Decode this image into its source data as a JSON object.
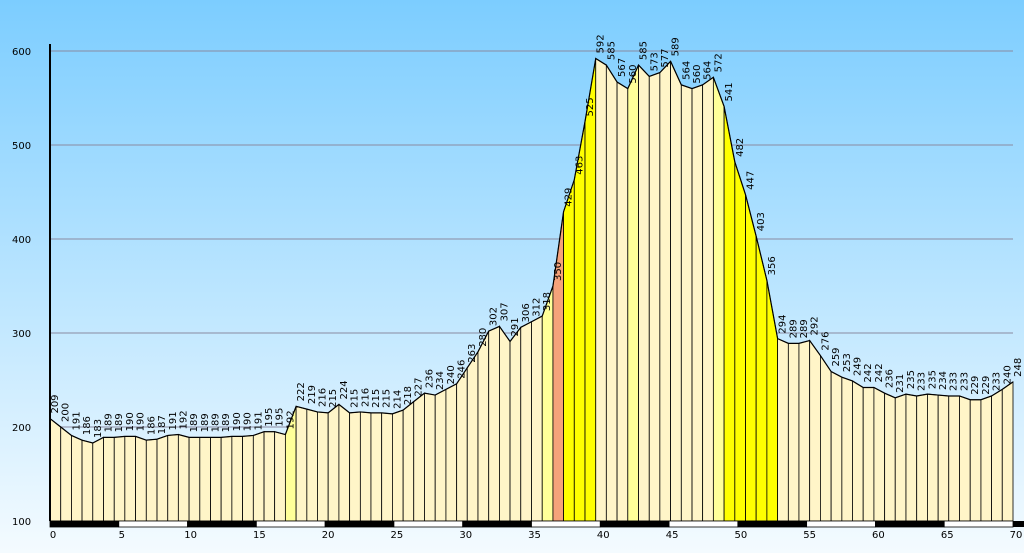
{
  "chart_data": {
    "type": "area",
    "x": [
      0,
      0.78,
      1.56,
      2.33,
      3.11,
      3.89,
      4.67,
      5.44,
      6.22,
      7,
      7.78,
      8.56,
      9.33,
      10.11,
      10.89,
      11.67,
      12.44,
      13.22,
      14,
      14.78,
      15.56,
      16.33,
      17.11,
      17.89,
      18.67,
      19.44,
      20.22,
      21,
      21.78,
      22.56,
      23.33,
      24.11,
      24.89,
      25.67,
      26.44,
      27.22,
      28,
      28.78,
      29.56,
      30.33,
      31.11,
      31.89,
      32.67,
      33.44,
      34.22,
      35,
      35.78,
      36.56,
      37.33,
      38.11,
      38.89,
      39.67,
      40.44,
      41.22,
      42,
      42.78,
      43.56,
      44.33,
      45.11,
      45.89,
      46.67,
      47.44,
      48.22,
      49,
      49.78,
      50.56,
      51.33,
      52.11,
      52.89,
      53.67,
      54.44,
      55.22,
      56,
      56.78,
      57.56,
      58.33,
      59.11,
      59.89,
      60.67,
      61.44,
      62.22,
      63,
      63.78,
      64.56,
      65.33,
      66.11,
      66.89,
      67.67,
      68.44,
      69.22,
      70
    ],
    "values": [
      209,
      200,
      191,
      186,
      183,
      189,
      189,
      190,
      190,
      186,
      187,
      191,
      192,
      189,
      189,
      189,
      189,
      190,
      190,
      191,
      195,
      195,
      192,
      222,
      219,
      216,
      215,
      224,
      215,
      216,
      215,
      215,
      214,
      218,
      227,
      236,
      234,
      240,
      246,
      263,
      280,
      302,
      307,
      291,
      306,
      312,
      318,
      350,
      429,
      463,
      525,
      592,
      585,
      567,
      560,
      585,
      573,
      577,
      589,
      564,
      560,
      564,
      572,
      541,
      482,
      447,
      403,
      356,
      294,
      289,
      289,
      292,
      276,
      259,
      253,
      249,
      242,
      242,
      236,
      231,
      235,
      233,
      235,
      234,
      233,
      233,
      229,
      229,
      233,
      240,
      248
    ],
    "segment_colors": [
      "#fff5c8",
      "#fff5c8",
      "#fff5c8",
      "#fff5c8",
      "#fff5c8",
      "#fff5c8",
      "#fff5c8",
      "#fff5c8",
      "#fff5c8",
      "#fff5c8",
      "#fff5c8",
      "#fff5c8",
      "#fff5c8",
      "#fff5c8",
      "#fff5c8",
      "#fff5c8",
      "#fff5c8",
      "#fff5c8",
      "#fff5c8",
      "#fff5c8",
      "#fff5c8",
      "#fff5c8",
      "#ffff99",
      "#fff5c8",
      "#fff5c8",
      "#fff5c8",
      "#fff5c8",
      "#fff5c8",
      "#fff5c8",
      "#fff5c8",
      "#fff5c8",
      "#fff5c8",
      "#fff5c8",
      "#fff5c8",
      "#fff5c8",
      "#fff5c8",
      "#fff5c8",
      "#fff5c8",
      "#fff5c8",
      "#fff5c8",
      "#fff5c8",
      "#fff5c8",
      "#fff5c8",
      "#fff5c8",
      "#fff5c8",
      "#fff5c8",
      "#ffff99",
      "#f5a27a",
      "#ffff00",
      "#ffff00",
      "#ffff00",
      "#fff5c8",
      "#fff5c8",
      "#fff5c8",
      "#ffff99",
      "#fff5c8",
      "#fff5c8",
      "#fff5c8",
      "#fff5c8",
      "#fff5c8",
      "#fff5c8",
      "#fff5c8",
      "#ffff99",
      "#ffff00",
      "#ffff00",
      "#ffff00",
      "#ffff00",
      "#ffff00",
      "#fff5c8",
      "#fff5c8",
      "#fff5c8",
      "#fff5c8",
      "#fff5c8",
      "#fff5c8",
      "#fff5c8",
      "#fff5c8",
      "#fff5c8",
      "#fff5c8",
      "#fff5c8",
      "#fff5c8",
      "#fff5c8",
      "#fff5c8",
      "#fff5c8",
      "#fff5c8",
      "#fff5c8",
      "#fff5c8",
      "#fff5c8",
      "#fff5c8",
      "#fff5c8",
      "#fff5c8"
    ],
    "xlim": [
      0,
      70
    ],
    "xticks": [
      0,
      5,
      10,
      15,
      20,
      25,
      30,
      35,
      40,
      45,
      50,
      55,
      60,
      65,
      70
    ],
    "ylim": [
      100,
      600
    ],
    "yticks": [
      100,
      200,
      300,
      400,
      500,
      600
    ],
    "grid": true
  }
}
